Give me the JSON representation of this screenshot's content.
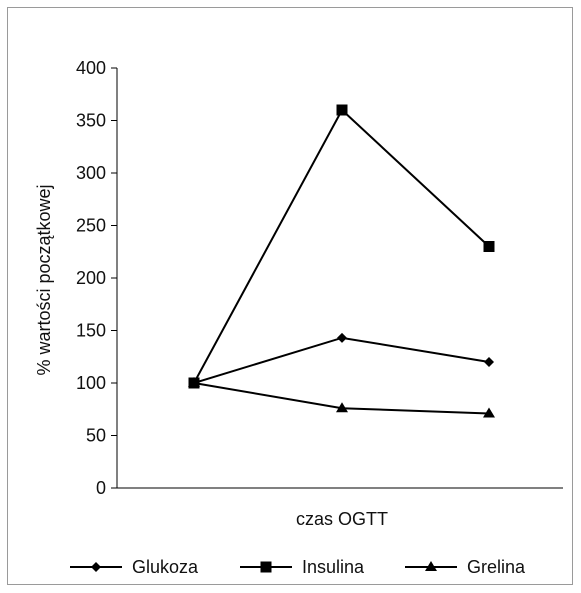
{
  "chart_data": {
    "type": "line",
    "xlabel": "czas OGTT",
    "ylabel": "% wartości początkowej",
    "ylim": [
      0,
      400
    ],
    "yticks": [
      0,
      50,
      100,
      150,
      200,
      250,
      300,
      350,
      400
    ],
    "x": [
      0,
      1,
      2
    ],
    "grid": false,
    "legend_position": "bottom",
    "series": [
      {
        "name": "Glukoza",
        "marker": "diamond",
        "values": [
          100,
          143,
          120
        ]
      },
      {
        "name": "Insulina",
        "marker": "square",
        "values": [
          100,
          360,
          230
        ]
      },
      {
        "name": "Grelina",
        "marker": "triangle",
        "values": [
          100,
          76,
          71
        ]
      }
    ],
    "colors": {
      "line": "#000000",
      "axis": "#000000"
    }
  }
}
